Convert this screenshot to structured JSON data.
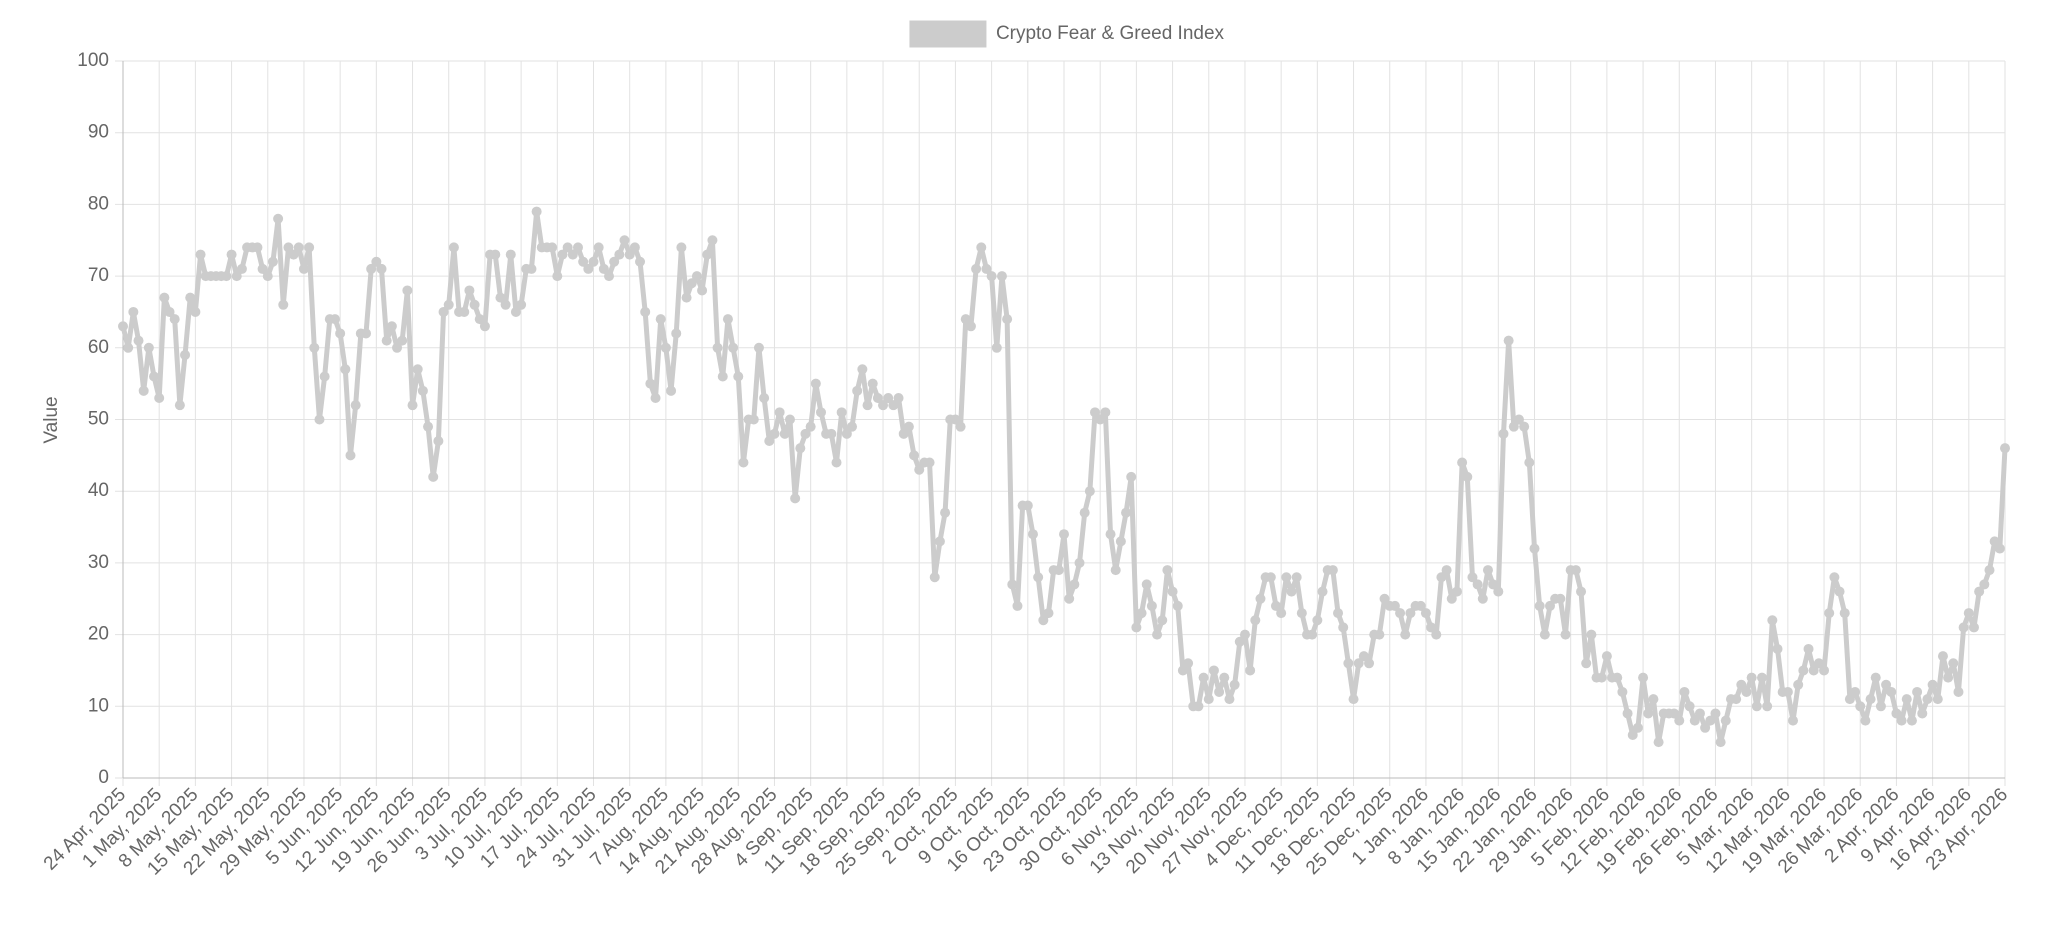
{
  "chart_data": {
    "type": "line",
    "ylabel": "Value",
    "legend": "top",
    "grid": true,
    "ylim": [
      0,
      100
    ],
    "yticks": [
      0,
      10,
      20,
      30,
      40,
      50,
      60,
      70,
      80,
      90,
      100
    ],
    "categories": [
      "24 Apr, 2025",
      null,
      null,
      null,
      null,
      null,
      null,
      "1 May, 2025",
      null,
      null,
      null,
      null,
      null,
      null,
      "8 May, 2025",
      null,
      null,
      null,
      null,
      null,
      null,
      "15 May, 2025",
      null,
      null,
      null,
      null,
      null,
      null,
      "22 May, 2025",
      null,
      null,
      null,
      null,
      null,
      null,
      "29 May, 2025",
      null,
      null,
      null,
      null,
      null,
      null,
      "5 Jun, 2025",
      null,
      null,
      null,
      null,
      null,
      null,
      "12 Jun, 2025",
      null,
      null,
      null,
      null,
      null,
      null,
      "19 Jun, 2025",
      null,
      null,
      null,
      null,
      null,
      null,
      "26 Jun, 2025",
      null,
      null,
      null,
      null,
      null,
      null,
      "3 Jul, 2025",
      null,
      null,
      null,
      null,
      null,
      null,
      "10 Jul, 2025",
      null,
      null,
      null,
      null,
      null,
      null,
      "17 Jul, 2025",
      null,
      null,
      null,
      null,
      null,
      null,
      "24 Jul, 2025",
      null,
      null,
      null,
      null,
      null,
      null,
      "31 Jul, 2025",
      null,
      null,
      null,
      null,
      null,
      null,
      "7 Aug, 2025",
      null,
      null,
      null,
      null,
      null,
      null,
      "14 Aug, 2025",
      null,
      null,
      null,
      null,
      null,
      null,
      "21 Aug, 2025",
      null,
      null,
      null,
      null,
      null,
      null,
      "28 Aug, 2025",
      null,
      null,
      null,
      null,
      null,
      null,
      "4 Sep, 2025",
      null,
      null,
      null,
      null,
      null,
      null,
      "11 Sep, 2025",
      null,
      null,
      null,
      null,
      null,
      null,
      "18 Sep, 2025",
      null,
      null,
      null,
      null,
      null,
      null,
      "25 Sep, 2025",
      null,
      null,
      null,
      null,
      null,
      null,
      "2 Oct, 2025",
      null,
      null,
      null,
      null,
      null,
      null,
      "9 Oct, 2025",
      null,
      null,
      null,
      null,
      null,
      null,
      "16 Oct, 2025",
      null,
      null,
      null,
      null,
      null,
      null,
      "23 Oct, 2025",
      null,
      null,
      null,
      null,
      null,
      null,
      "30 Oct, 2025",
      null,
      null,
      null,
      null,
      null,
      null,
      "6 Nov, 2025",
      null,
      null,
      null,
      null,
      null,
      null,
      "13 Nov, 2025",
      null,
      null,
      null,
      null,
      null,
      null,
      "20 Nov, 2025",
      null,
      null,
      null,
      null,
      null,
      null,
      "27 Nov, 2025",
      null,
      null,
      null,
      null,
      null,
      null,
      "4 Dec, 2025",
      null,
      null,
      null,
      null,
      null,
      null,
      "11 Dec, 2025",
      null,
      null,
      null,
      null,
      null,
      null,
      "18 Dec, 2025",
      null,
      null,
      null,
      null,
      null,
      null,
      "25 Dec, 2025",
      null,
      null,
      null,
      null,
      null,
      null,
      "1 Jan, 2026",
      null,
      null,
      null,
      null,
      null,
      null,
      "8 Jan, 2026",
      null,
      null,
      null,
      null,
      null,
      null,
      "15 Jan, 2026",
      null,
      null,
      null,
      null,
      null,
      null,
      "22 Jan, 2026",
      null,
      null,
      null,
      null,
      null,
      null,
      "29 Jan, 2026",
      null,
      null,
      null,
      null,
      null,
      null,
      "5 Feb, 2026",
      null,
      null,
      null,
      null,
      null,
      null,
      "12 Feb, 2026",
      null,
      null,
      null,
      null,
      null,
      null,
      "19 Feb, 2026",
      null,
      null,
      null,
      null,
      null,
      null,
      "26 Feb, 2026",
      null,
      null,
      null,
      null,
      null,
      null,
      "5 Mar, 2026",
      null,
      null,
      null,
      null,
      null,
      null,
      "12 Mar, 2026",
      null,
      null,
      null,
      null,
      null,
      null,
      "19 Mar, 2026",
      null,
      null,
      null,
      null,
      null,
      null,
      "26 Mar, 2026",
      null,
      null,
      null,
      null,
      null,
      null,
      "2 Apr, 2026",
      null,
      null,
      null,
      null,
      null,
      null,
      "9 Apr, 2026",
      null,
      null,
      null,
      null,
      null,
      null,
      "16 Apr, 2026",
      null,
      null,
      null,
      null,
      null,
      null,
      "23 Apr, 2026"
    ],
    "series": [
      {
        "name": "Crypto Fear & Greed Index",
        "color": "#cccccc",
        "values": [
          63,
          60,
          65,
          61,
          54,
          60,
          56,
          53,
          67,
          65,
          64,
          52,
          59,
          67,
          65,
          73,
          70,
          70,
          70,
          70,
          70,
          73,
          70,
          71,
          74,
          74,
          74,
          71,
          70,
          72,
          78,
          66,
          74,
          73,
          74,
          71,
          74,
          60,
          50,
          56,
          64,
          64,
          62,
          57,
          45,
          52,
          62,
          62,
          71,
          72,
          71,
          61,
          63,
          60,
          61,
          68,
          52,
          57,
          54,
          49,
          42,
          47,
          65,
          66,
          74,
          65,
          65,
          68,
          66,
          64,
          63,
          73,
          73,
          67,
          66,
          73,
          65,
          66,
          71,
          71,
          79,
          74,
          74,
          74,
          70,
          73,
          74,
          73,
          74,
          72,
          71,
          72,
          74,
          71,
          70,
          72,
          73,
          75,
          73,
          74,
          72,
          65,
          55,
          53,
          64,
          60,
          54,
          62,
          74,
          67,
          69,
          70,
          68,
          73,
          75,
          60,
          56,
          64,
          60,
          56,
          44,
          50,
          50,
          60,
          53,
          47,
          48,
          51,
          48,
          50,
          39,
          46,
          48,
          49,
          55,
          51,
          48,
          48,
          44,
          51,
          48,
          49,
          54,
          57,
          52,
          55,
          53,
          52,
          53,
          52,
          53,
          48,
          49,
          45,
          43,
          44,
          44,
          28,
          33,
          37,
          50,
          50,
          49,
          64,
          63,
          71,
          74,
          71,
          70,
          60,
          70,
          64,
          27,
          24,
          38,
          38,
          34,
          28,
          22,
          23,
          29,
          29,
          34,
          25,
          27,
          30,
          37,
          40,
          51,
          50,
          51,
          34,
          29,
          33,
          37,
          42,
          21,
          23,
          27,
          24,
          20,
          22,
          29,
          26,
          24,
          15,
          16,
          10,
          10,
          14,
          11,
          15,
          12,
          14,
          11,
          13,
          19,
          20,
          15,
          22,
          25,
          28,
          28,
          24,
          23,
          28,
          26,
          28,
          23,
          20,
          20,
          22,
          26,
          29,
          29,
          23,
          21,
          16,
          11,
          16,
          17,
          16,
          20,
          20,
          25,
          24,
          24,
          23,
          20,
          23,
          24,
          24,
          23,
          21,
          20,
          28,
          29,
          25,
          26,
          44,
          42,
          28,
          27,
          25,
          29,
          27,
          26,
          48,
          61,
          49,
          50,
          49,
          44,
          32,
          24,
          20,
          24,
          25,
          25,
          20,
          29,
          29,
          26,
          16,
          20,
          14,
          14,
          17,
          14,
          14,
          12,
          9,
          6,
          7,
          14,
          9,
          11,
          5,
          9,
          9,
          9,
          8,
          12,
          10,
          8,
          9,
          7,
          8,
          9,
          5,
          8,
          11,
          11,
          13,
          12,
          14,
          10,
          14,
          10,
          22,
          18,
          12,
          12,
          8,
          13,
          15,
          18,
          15,
          16,
          15,
          23,
          28,
          26,
          23,
          11,
          12,
          10,
          8,
          11,
          14,
          10,
          13,
          12,
          9,
          8,
          11,
          8,
          12,
          9,
          11,
          13,
          11,
          17,
          14,
          16,
          12,
          21,
          23,
          21,
          26,
          27,
          29,
          33,
          32,
          46
        ]
      }
    ]
  }
}
